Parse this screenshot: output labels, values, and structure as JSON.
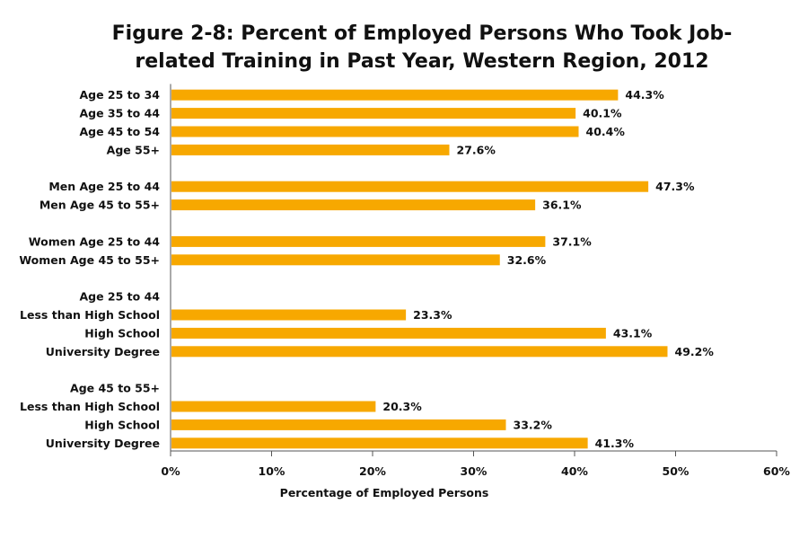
{
  "chart_data": {
    "type": "bar",
    "orientation": "horizontal",
    "title": "Figure 2-8: Percent of Employed Persons Who Took Job-related Training in Past Year, Western Region, 2012",
    "xlabel": "Percentage of Employed Persons",
    "ylabel": "",
    "xlim": [
      0,
      60
    ],
    "xticks": [
      "0%",
      "10%",
      "20%",
      "30%",
      "40%",
      "50%",
      "60%"
    ],
    "grid": false,
    "bar_color": "#F7A800",
    "rows": [
      {
        "label": "Age 25 to 34",
        "value": 44.3,
        "value_label": "44.3%"
      },
      {
        "label": "Age 35 to 44",
        "value": 40.1,
        "value_label": "40.1%"
      },
      {
        "label": "Age 45 to 54",
        "value": 40.4,
        "value_label": "40.4%"
      },
      {
        "label": "Age 55+",
        "value": 27.6,
        "value_label": "27.6%"
      },
      {
        "label": "",
        "value": null,
        "value_label": ""
      },
      {
        "label": "Men Age 25 to 44",
        "value": 47.3,
        "value_label": "47.3%"
      },
      {
        "label": "Men Age 45 to 55+",
        "value": 36.1,
        "value_label": "36.1%"
      },
      {
        "label": "",
        "value": null,
        "value_label": ""
      },
      {
        "label": "Women Age 25 to 44",
        "value": 37.1,
        "value_label": "37.1%"
      },
      {
        "label": "Women Age 45 to 55+",
        "value": 32.6,
        "value_label": "32.6%"
      },
      {
        "label": "",
        "value": null,
        "value_label": ""
      },
      {
        "label": "Age 25 to 44",
        "value": null,
        "value_label": ""
      },
      {
        "label": "Less than High School",
        "value": 23.3,
        "value_label": "23.3%"
      },
      {
        "label": "High School",
        "value": 43.1,
        "value_label": "43.1%"
      },
      {
        "label": "University Degree",
        "value": 49.2,
        "value_label": "49.2%"
      },
      {
        "label": "",
        "value": null,
        "value_label": ""
      },
      {
        "label": "Age 45 to 55+",
        "value": null,
        "value_label": ""
      },
      {
        "label": "Less than High School",
        "value": 20.3,
        "value_label": "20.3%"
      },
      {
        "label": "High School",
        "value": 33.2,
        "value_label": "33.2%"
      },
      {
        "label": "University Degree",
        "value": 41.3,
        "value_label": "41.3%"
      }
    ]
  }
}
